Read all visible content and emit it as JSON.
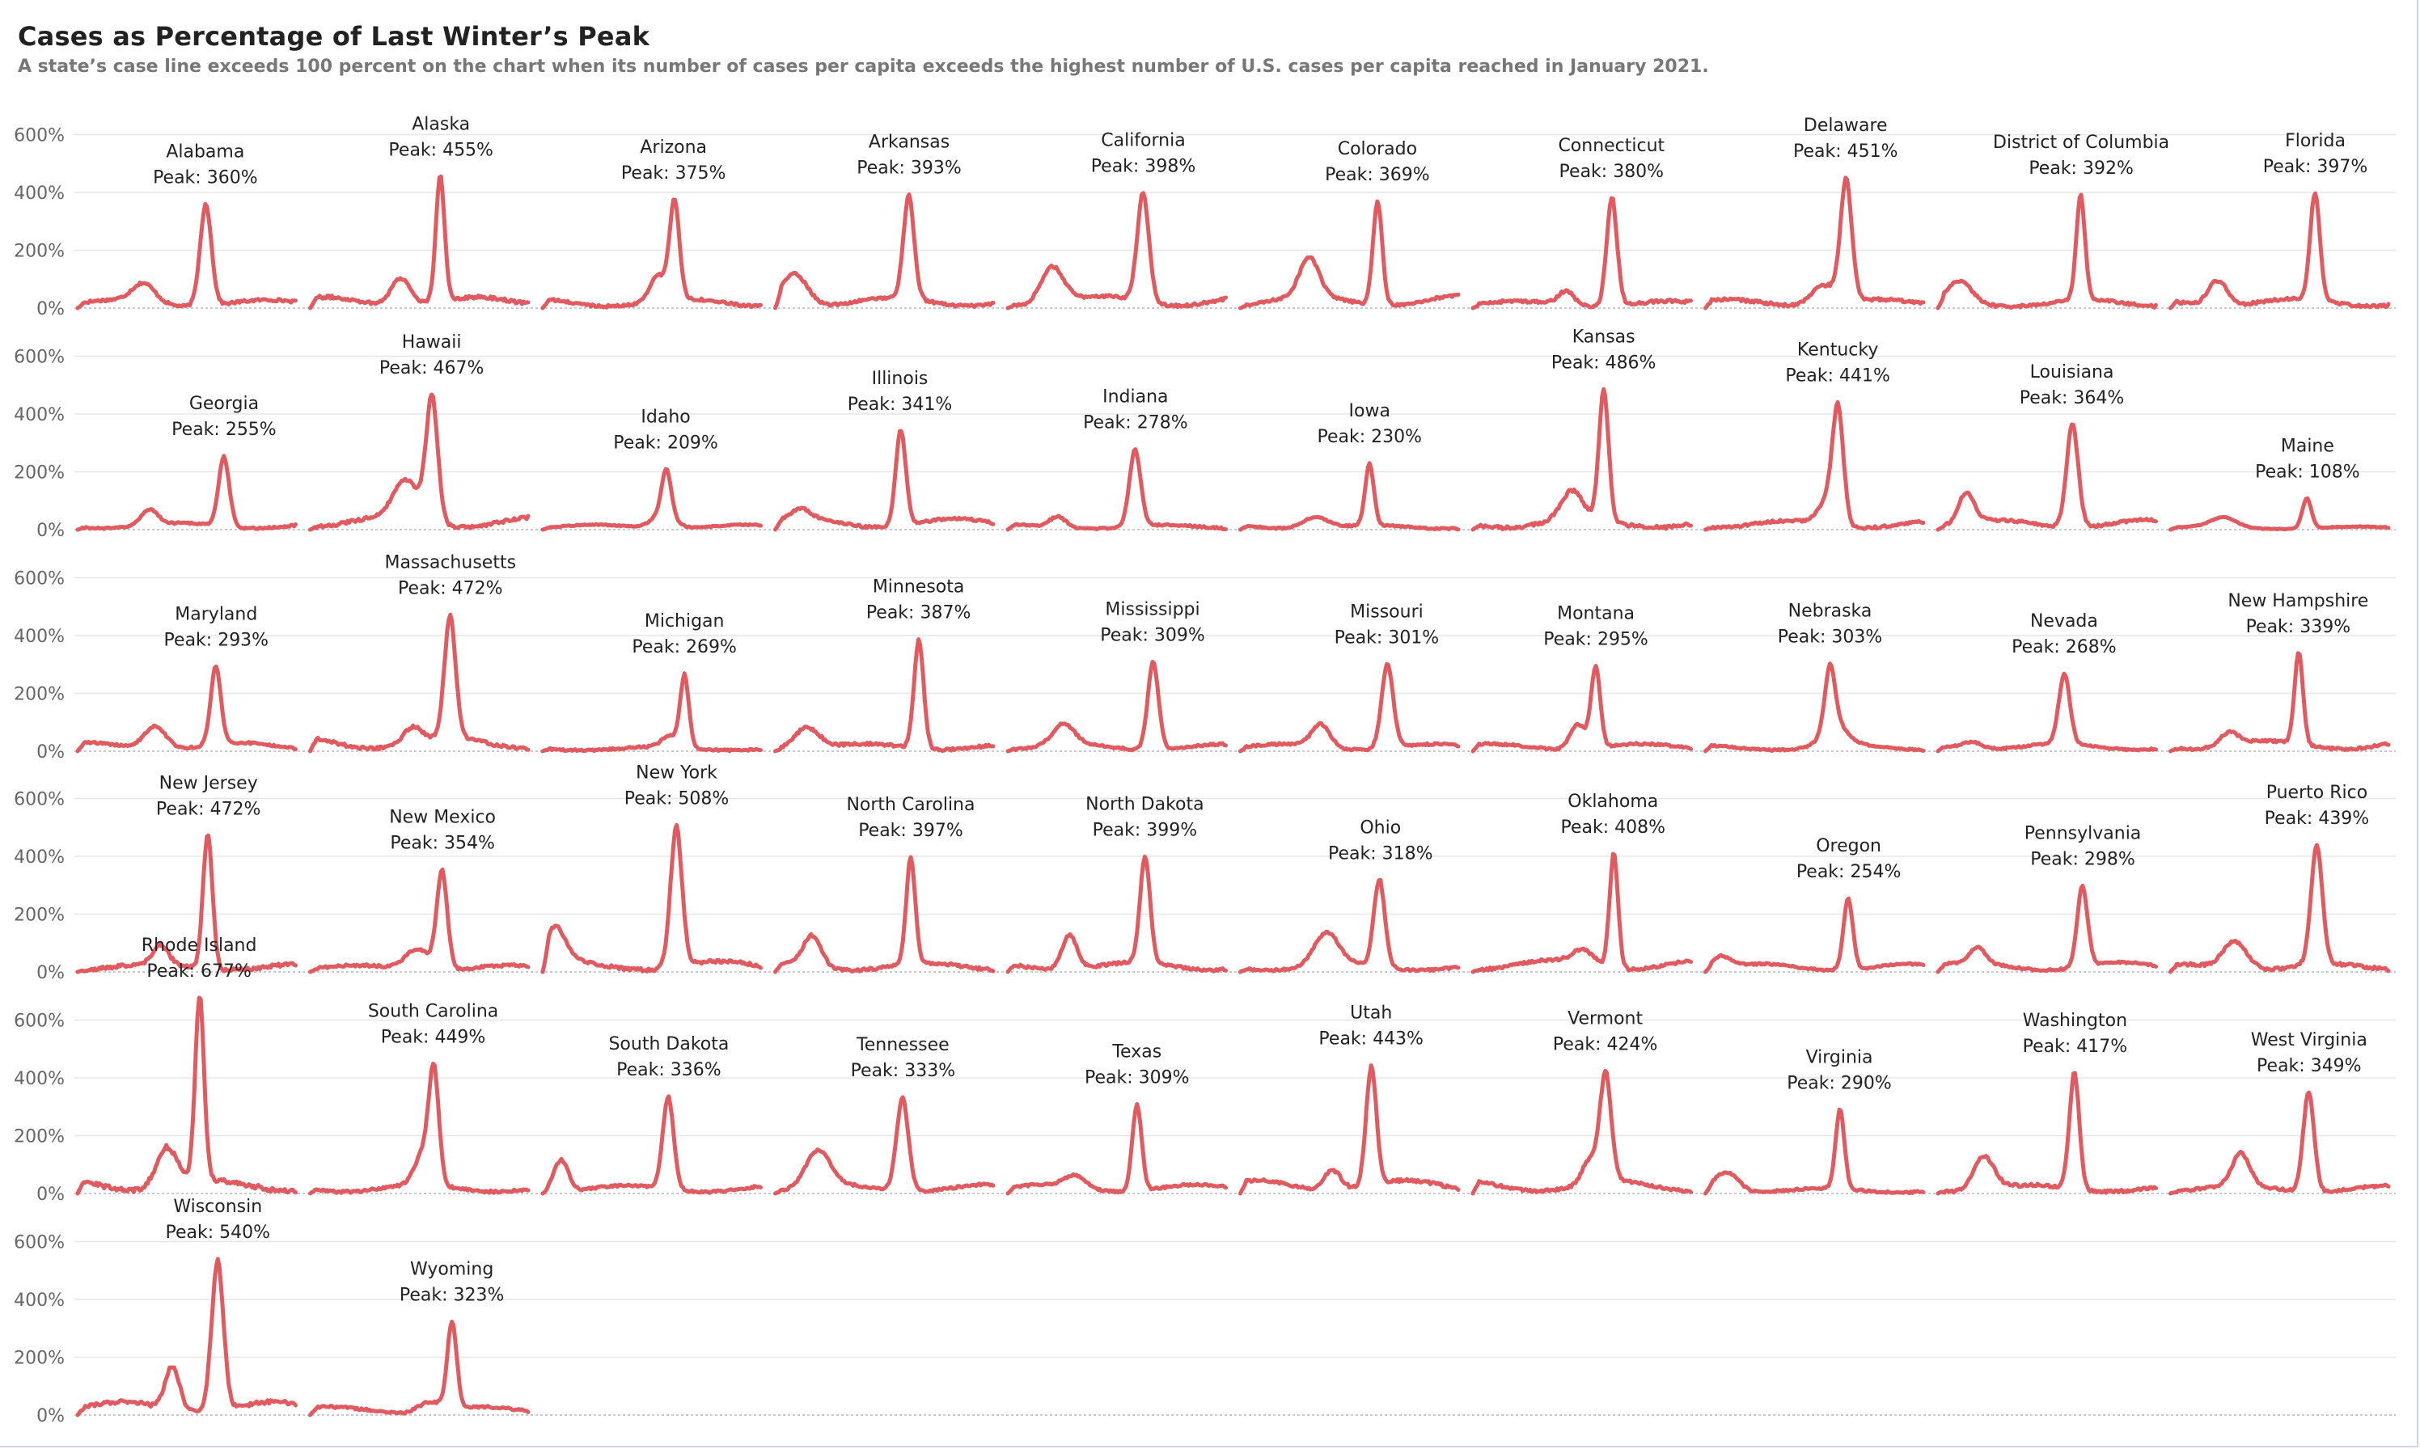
{
  "title": "Cases as Percentage of Last Winter’s Peak",
  "subtitle": "A state’s case line exceeds 100 percent on the chart when its number of cases per capita exceeds the highest number of U.S. cases per capita reached in January 2021.",
  "colors": {
    "line": "#e05a5f",
    "grid": "#e6e6e6",
    "baseline": "#b5b9c4",
    "text": "#222222",
    "tick": "#666666"
  },
  "chart_data": {
    "type": "line",
    "layout": "small-multiples",
    "columns": 10,
    "y_ticks": [
      "0%",
      "200%",
      "400%",
      "600%"
    ],
    "ylim": [
      0,
      650
    ],
    "peak_label_prefix": "Peak: ",
    "states": [
      {
        "name": "Alabama",
        "peak": 360,
        "peak_label": "360%"
      },
      {
        "name": "Alaska",
        "peak": 455,
        "peak_label": "455%"
      },
      {
        "name": "Arizona",
        "peak": 375,
        "peak_label": "375%"
      },
      {
        "name": "Arkansas",
        "peak": 393,
        "peak_label": "393%"
      },
      {
        "name": "California",
        "peak": 398,
        "peak_label": "398%"
      },
      {
        "name": "Colorado",
        "peak": 369,
        "peak_label": "369%"
      },
      {
        "name": "Connecticut",
        "peak": 380,
        "peak_label": "380%"
      },
      {
        "name": "Delaware",
        "peak": 451,
        "peak_label": "451%"
      },
      {
        "name": "District of Columbia",
        "peak": 392,
        "peak_label": "392%"
      },
      {
        "name": "Florida",
        "peak": 397,
        "peak_label": "397%"
      },
      {
        "name": "Georgia",
        "peak": 255,
        "peak_label": "255%"
      },
      {
        "name": "Hawaii",
        "peak": 467,
        "peak_label": "467%"
      },
      {
        "name": "Idaho",
        "peak": 209,
        "peak_label": "209%"
      },
      {
        "name": "Illinois",
        "peak": 341,
        "peak_label": "341%"
      },
      {
        "name": "Indiana",
        "peak": 278,
        "peak_label": "278%"
      },
      {
        "name": "Iowa",
        "peak": 230,
        "peak_label": "230%"
      },
      {
        "name": "Kansas",
        "peak": 486,
        "peak_label": "486%"
      },
      {
        "name": "Kentucky",
        "peak": 441,
        "peak_label": "441%"
      },
      {
        "name": "Louisiana",
        "peak": 364,
        "peak_label": "364%"
      },
      {
        "name": "Maine",
        "peak": 108,
        "peak_label": "108%"
      },
      {
        "name": "Maryland",
        "peak": 293,
        "peak_label": "293%"
      },
      {
        "name": "Massachusetts",
        "peak": 472,
        "peak_label": "472%"
      },
      {
        "name": "Michigan",
        "peak": 269,
        "peak_label": "269%"
      },
      {
        "name": "Minnesota",
        "peak": 387,
        "peak_label": "387%"
      },
      {
        "name": "Mississippi",
        "peak": 309,
        "peak_label": "309%"
      },
      {
        "name": "Missouri",
        "peak": 301,
        "peak_label": "301%"
      },
      {
        "name": "Montana",
        "peak": 295,
        "peak_label": "295%"
      },
      {
        "name": "Nebraska",
        "peak": 303,
        "peak_label": "303%"
      },
      {
        "name": "Nevada",
        "peak": 268,
        "peak_label": "268%"
      },
      {
        "name": "New Hampshire",
        "peak": 339,
        "peak_label": "339%"
      },
      {
        "name": "New Jersey",
        "peak": 472,
        "peak_label": "472%"
      },
      {
        "name": "New Mexico",
        "peak": 354,
        "peak_label": "354%"
      },
      {
        "name": "New York",
        "peak": 508,
        "peak_label": "508%"
      },
      {
        "name": "North Carolina",
        "peak": 397,
        "peak_label": "397%"
      },
      {
        "name": "North Dakota",
        "peak": 399,
        "peak_label": "399%"
      },
      {
        "name": "Ohio",
        "peak": 318,
        "peak_label": "318%"
      },
      {
        "name": "Oklahoma",
        "peak": 408,
        "peak_label": "408%"
      },
      {
        "name": "Oregon",
        "peak": 254,
        "peak_label": "254%"
      },
      {
        "name": "Pennsylvania",
        "peak": 298,
        "peak_label": "298%"
      },
      {
        "name": "Puerto Rico",
        "peak": 439,
        "peak_label": "439%"
      },
      {
        "name": "Rhode Island",
        "peak": 677,
        "peak_label": "677%"
      },
      {
        "name": "South Carolina",
        "peak": 449,
        "peak_label": "449%"
      },
      {
        "name": "South Dakota",
        "peak": 336,
        "peak_label": "336%"
      },
      {
        "name": "Tennessee",
        "peak": 333,
        "peak_label": "333%"
      },
      {
        "name": "Texas",
        "peak": 309,
        "peak_label": "309%"
      },
      {
        "name": "Utah",
        "peak": 443,
        "peak_label": "443%"
      },
      {
        "name": "Vermont",
        "peak": 424,
        "peak_label": "424%"
      },
      {
        "name": "Virginia",
        "peak": 290,
        "peak_label": "290%"
      },
      {
        "name": "Washington",
        "peak": 417,
        "peak_label": "417%"
      },
      {
        "name": "West Virginia",
        "peak": 349,
        "peak_label": "349%"
      },
      {
        "name": "Wisconsin",
        "peak": 540,
        "peak_label": "540%"
      },
      {
        "name": "Wyoming",
        "peak": 323,
        "peak_label": "323%"
      }
    ]
  }
}
